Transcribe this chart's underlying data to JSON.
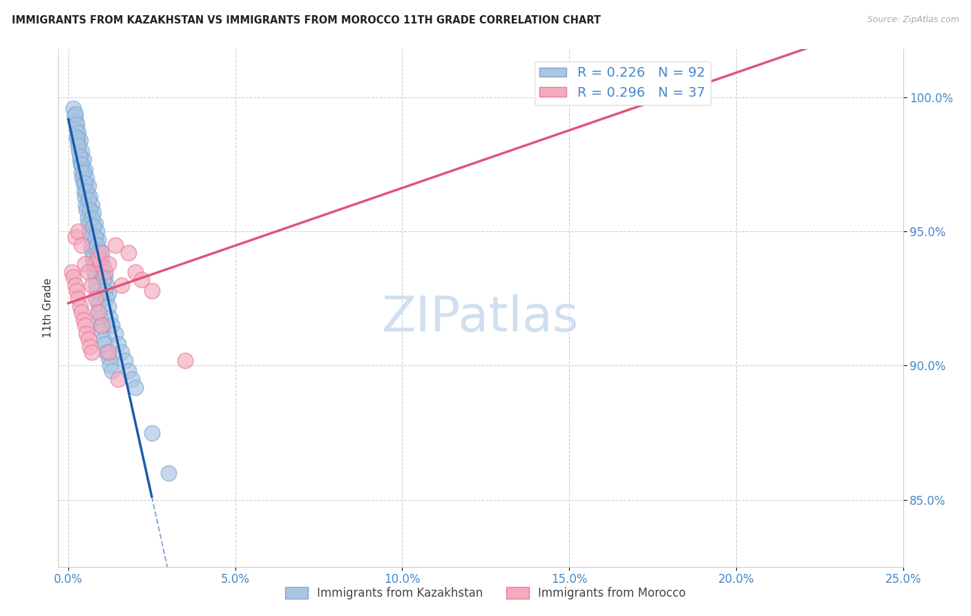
{
  "title": "IMMIGRANTS FROM KAZAKHSTAN VS IMMIGRANTS FROM MOROCCO 11TH GRADE CORRELATION CHART",
  "source": "Source: ZipAtlas.com",
  "ylabel": "11th Grade",
  "y_ticks": [
    85.0,
    90.0,
    95.0,
    100.0
  ],
  "x_ticks": [
    0.0,
    5.0,
    10.0,
    15.0,
    20.0,
    25.0
  ],
  "xlim": [
    -0.3,
    25.0
  ],
  "ylim": [
    82.5,
    101.8
  ],
  "kazakhstan_color": "#aac4e2",
  "kazakhstan_edge": "#7aaad4",
  "morocco_color": "#f5aabe",
  "morocco_edge": "#e87a9a",
  "kazakhstan_line_color": "#1a5aa8",
  "morocco_line_color": "#e05575",
  "kazakhstan_R": 0.226,
  "kazakhstan_N": 92,
  "morocco_R": 0.296,
  "morocco_N": 37,
  "watermark_color": "#d0dff0",
  "background_color": "#ffffff",
  "grid_color": "#cccccc",
  "tick_label_color": "#4488cc",
  "title_color": "#222222",
  "source_color": "#aaaaaa",
  "kazakhstan_x": [
    0.15,
    0.18,
    0.22,
    0.25,
    0.28,
    0.3,
    0.32,
    0.35,
    0.38,
    0.4,
    0.42,
    0.45,
    0.48,
    0.5,
    0.52,
    0.55,
    0.58,
    0.6,
    0.62,
    0.65,
    0.68,
    0.7,
    0.72,
    0.75,
    0.78,
    0.8,
    0.82,
    0.85,
    0.88,
    0.9,
    0.92,
    0.95,
    0.98,
    1.0,
    1.05,
    1.1,
    1.15,
    1.2,
    1.25,
    1.3,
    0.2,
    0.25,
    0.3,
    0.35,
    0.4,
    0.45,
    0.5,
    0.55,
    0.6,
    0.65,
    0.7,
    0.75,
    0.8,
    0.85,
    0.9,
    0.95,
    1.0,
    1.05,
    1.1,
    1.15,
    1.2,
    0.25,
    0.3,
    0.35,
    0.4,
    0.45,
    0.5,
    0.55,
    0.6,
    0.65,
    0.7,
    0.75,
    0.8,
    0.85,
    0.9,
    0.95,
    1.0,
    1.05,
    1.1,
    1.15,
    1.2,
    1.25,
    1.3,
    1.4,
    1.5,
    1.6,
    1.7,
    1.8,
    1.9,
    2.0,
    2.5,
    3.0
  ],
  "kazakhstan_y": [
    99.6,
    99.3,
    99.1,
    98.8,
    98.5,
    98.3,
    98.0,
    97.7,
    97.5,
    97.2,
    97.0,
    96.8,
    96.5,
    96.3,
    96.0,
    95.8,
    95.5,
    95.3,
    95.0,
    94.8,
    94.5,
    94.3,
    94.0,
    93.8,
    93.5,
    93.3,
    93.0,
    92.8,
    92.5,
    92.3,
    92.0,
    91.8,
    91.5,
    91.3,
    91.0,
    90.8,
    90.5,
    90.3,
    90.0,
    89.8,
    99.4,
    99.0,
    98.7,
    98.4,
    98.0,
    97.7,
    97.3,
    97.0,
    96.7,
    96.3,
    96.0,
    95.7,
    95.3,
    95.0,
    94.7,
    94.3,
    94.0,
    93.7,
    93.3,
    93.0,
    92.7,
    98.5,
    98.2,
    97.8,
    97.5,
    97.2,
    96.8,
    96.5,
    96.2,
    95.8,
    95.5,
    95.2,
    94.8,
    94.5,
    94.2,
    93.8,
    93.5,
    93.2,
    92.8,
    92.5,
    92.2,
    91.8,
    91.5,
    91.2,
    90.8,
    90.5,
    90.2,
    89.8,
    89.5,
    89.2,
    87.5,
    86.0
  ],
  "morocco_x": [
    0.1,
    0.15,
    0.2,
    0.25,
    0.3,
    0.35,
    0.4,
    0.45,
    0.5,
    0.55,
    0.6,
    0.65,
    0.7,
    0.8,
    0.9,
    1.0,
    1.1,
    1.2,
    1.4,
    1.6,
    1.8,
    2.0,
    2.2,
    2.5,
    0.2,
    0.3,
    0.4,
    0.5,
    0.6,
    0.7,
    0.8,
    0.9,
    1.0,
    1.2,
    1.5,
    3.5,
    16.8
  ],
  "morocco_y": [
    93.5,
    93.3,
    93.0,
    92.8,
    92.5,
    92.2,
    92.0,
    91.7,
    91.5,
    91.2,
    91.0,
    90.7,
    90.5,
    93.8,
    94.0,
    94.2,
    93.5,
    93.8,
    94.5,
    93.0,
    94.2,
    93.5,
    93.2,
    92.8,
    94.8,
    95.0,
    94.5,
    93.8,
    93.5,
    93.0,
    92.5,
    92.0,
    91.5,
    90.5,
    89.5,
    90.2,
    100.5
  ]
}
